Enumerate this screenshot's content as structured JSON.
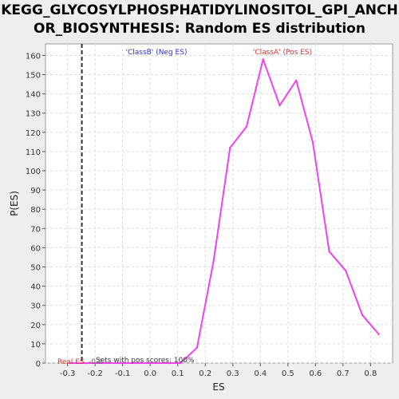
{
  "title_line1": "KEGG_GLYCOSYLPHOSPHATIDYLINOSITOL_GPI_ANCH",
  "title_line2": "OR_BIOSYNTHESIS: Random ES distribution",
  "colors": {
    "curve": "#ee44ee",
    "neg_label": "#3333cc",
    "pos_label": "#dd3333",
    "plot_bg": "#ffffff",
    "grid": "#dddddd"
  },
  "chart_data": {
    "type": "line",
    "title": "KEGG_GLYCOSYLPHOSPHATIDYLINOSITOL_GPI_ANCHOR_BIOSYNTHESIS: Random ES distribution",
    "xlabel": "ES",
    "ylabel": "P(ES)",
    "xlim": [
      -0.38,
      0.88
    ],
    "ylim": [
      0,
      166
    ],
    "xticks": [
      -0.3,
      -0.2,
      -0.1,
      0.0,
      0.1,
      0.2,
      0.3,
      0.4,
      0.5,
      0.6,
      0.7,
      0.8
    ],
    "xtick_labels": [
      "-0.3",
      "-0.2",
      "-0.1",
      "0.0",
      "0.1",
      "0.2",
      "0.3",
      "0.4",
      "0.5",
      "0.6",
      "0.7",
      "0.8"
    ],
    "yticks": [
      0,
      10,
      20,
      30,
      40,
      50,
      60,
      70,
      80,
      90,
      100,
      110,
      120,
      130,
      140,
      150,
      160
    ],
    "ytick_labels": [
      "0",
      "10",
      "20",
      "30",
      "40",
      "50",
      "60",
      "70",
      "80",
      "90",
      "100",
      "110",
      "120",
      "130",
      "140",
      "150",
      "160"
    ],
    "grid": true,
    "series": [
      {
        "x": [
          -0.29,
          -0.23,
          -0.17,
          -0.11,
          -0.05,
          0.01,
          0.07,
          0.11,
          0.17,
          0.23,
          0.29,
          0.35,
          0.41,
          0.47,
          0.53,
          0.59,
          0.65,
          0.71,
          0.77,
          0.83
        ],
        "values": [
          0,
          0,
          0,
          0,
          0,
          0,
          0,
          0,
          8,
          53,
          112,
          123,
          158,
          134,
          147,
          115,
          58,
          48,
          25,
          15
        ]
      }
    ],
    "real_es_line": -0.248,
    "annotations": {
      "neg": "'ClassB' (Neg ES)",
      "pos": "'ClassA' (Pos ES)",
      "real_es": "Real ES",
      "real_es_value": "-0.2",
      "sets": "Sets with pos scores: 100%"
    }
  }
}
